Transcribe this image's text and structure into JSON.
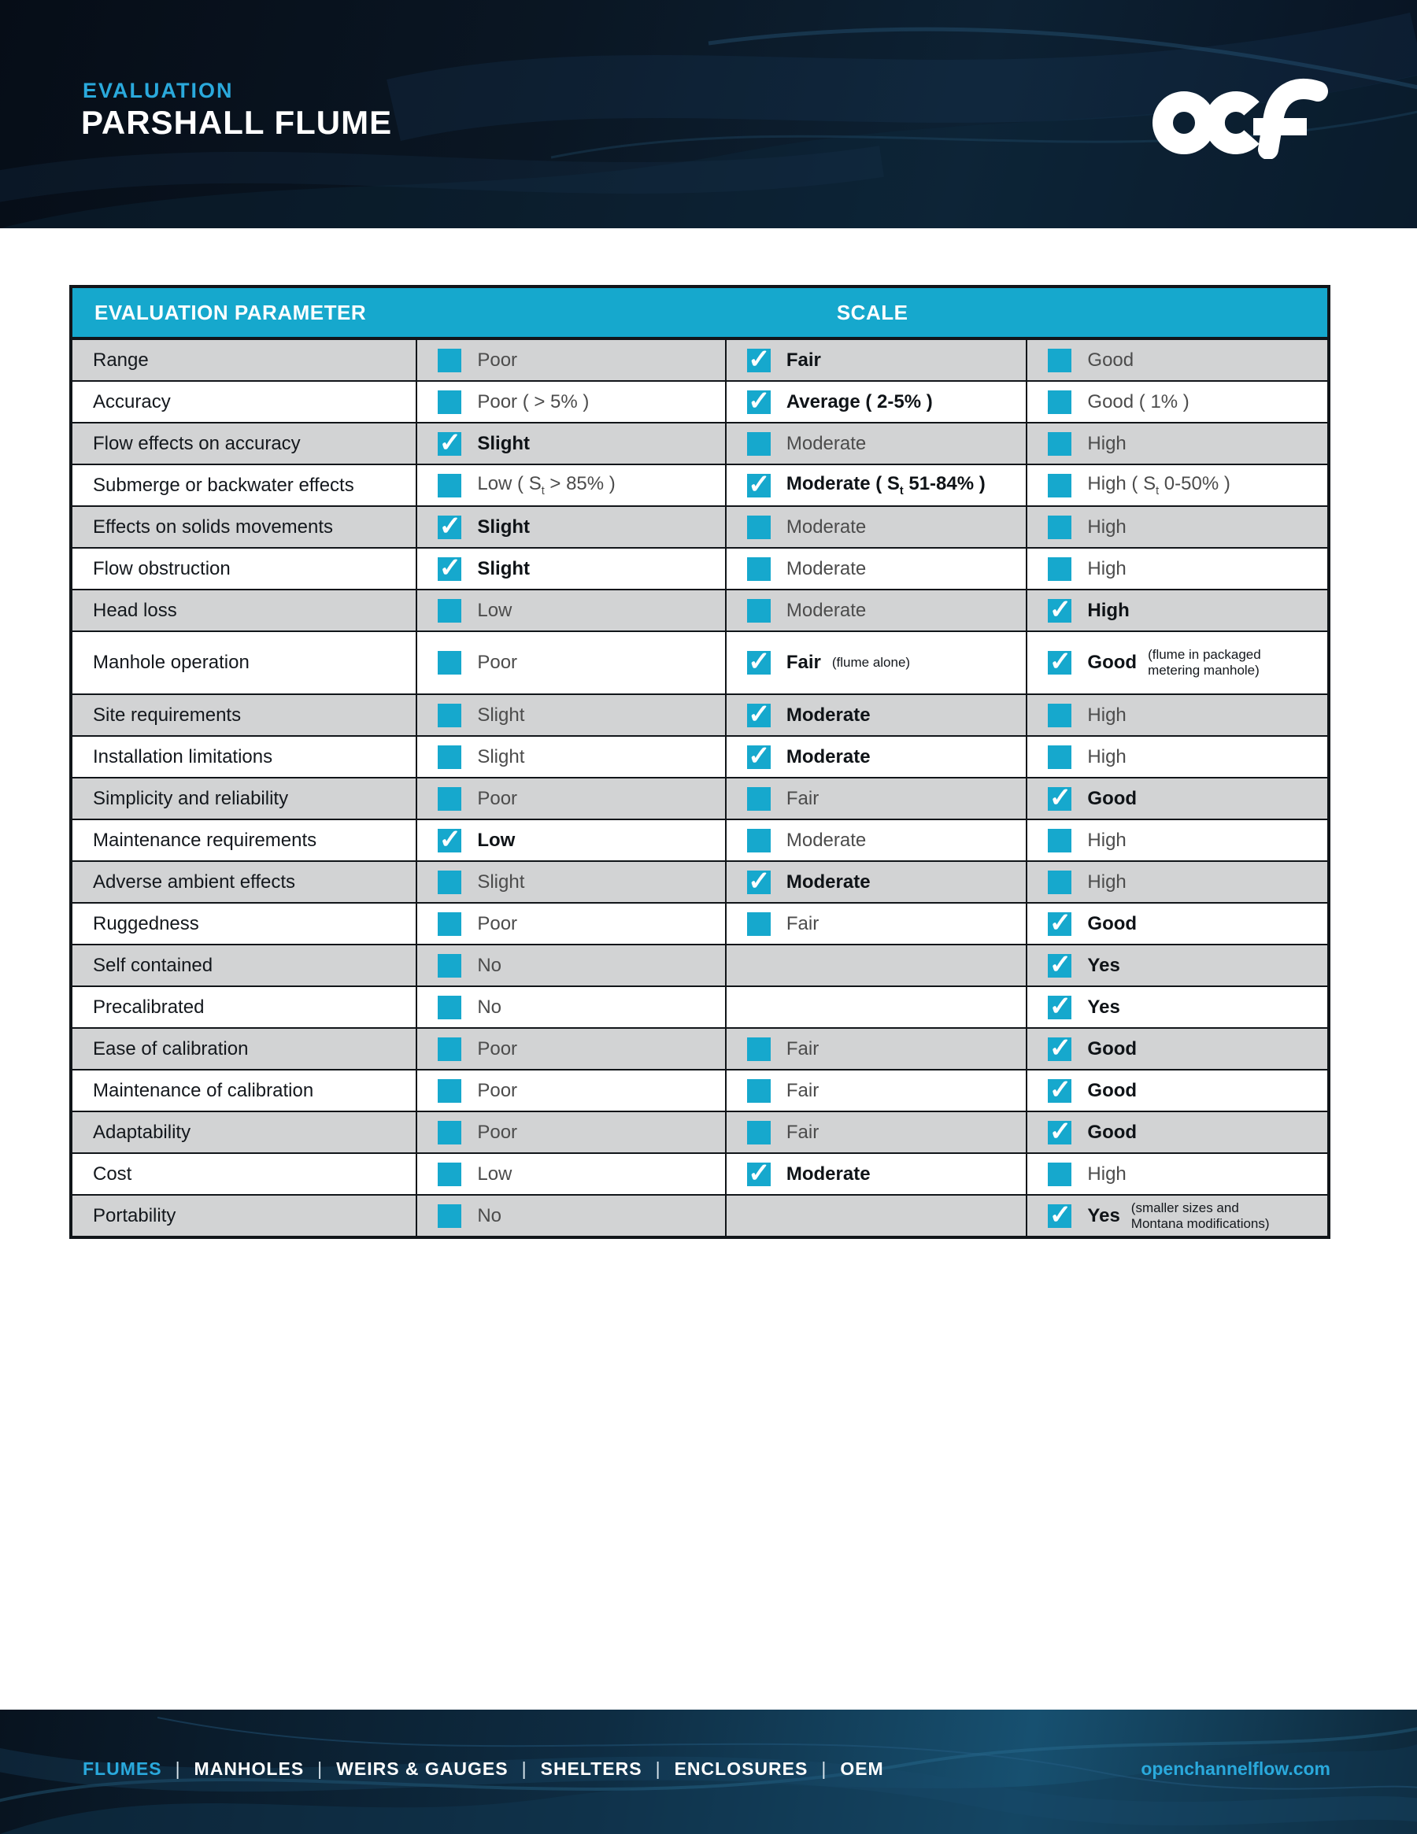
{
  "header": {
    "eyebrow": "EVALUATION",
    "title": "PARSHALL FLUME",
    "logo": "OCF"
  },
  "table": {
    "col_param": "EVALUATION PARAMETER",
    "col_scale": "SCALE",
    "rows": [
      {
        "param": "Range",
        "cells": [
          {
            "label": "Poor",
            "checked": false
          },
          {
            "label": "Fair",
            "checked": true
          },
          {
            "label": "Good",
            "checked": false
          }
        ]
      },
      {
        "param": "Accuracy",
        "cells": [
          {
            "label": "Poor ( > 5% )",
            "checked": false
          },
          {
            "label": "Average ( 2-5% )",
            "checked": true
          },
          {
            "label": "Good ( 1% )",
            "checked": false
          }
        ]
      },
      {
        "param": "Flow effects on accuracy",
        "cells": [
          {
            "label": "Slight",
            "checked": true
          },
          {
            "label": "Moderate",
            "checked": false
          },
          {
            "label": "High",
            "checked": false
          }
        ]
      },
      {
        "param": "Submerge or backwater effects",
        "cells": [
          {
            "label": "Low ( St > 85% )",
            "label_html": "Low ( S<sub>t</sub> &gt; 85% )",
            "checked": false
          },
          {
            "label": "Moderate ( St 51-84% )",
            "label_html": "Moderate ( S<sub>t</sub> 51-84%  )",
            "checked": true
          },
          {
            "label": "High ( St 0-50% )",
            "label_html": "High ( S<sub>t</sub> 0-50%  )",
            "checked": false
          }
        ]
      },
      {
        "param": "Effects on solids movements",
        "cells": [
          {
            "label": "Slight",
            "checked": true
          },
          {
            "label": "Moderate",
            "checked": false
          },
          {
            "label": "High",
            "checked": false
          }
        ]
      },
      {
        "param": "Flow obstruction",
        "cells": [
          {
            "label": "Slight",
            "checked": true
          },
          {
            "label": "Moderate",
            "checked": false
          },
          {
            "label": "High",
            "checked": false
          }
        ]
      },
      {
        "param": "Head loss",
        "cells": [
          {
            "label": "Low",
            "checked": false
          },
          {
            "label": "Moderate",
            "checked": false
          },
          {
            "label": "High",
            "checked": true
          }
        ]
      },
      {
        "param": "Manhole operation",
        "tall": true,
        "cells": [
          {
            "label": "Poor",
            "checked": false
          },
          {
            "label": "Fair",
            "checked": true,
            "note": "(flume alone)"
          },
          {
            "label": "Good",
            "checked": true,
            "note": "(flume in packaged\nmetering manhole)"
          }
        ]
      },
      {
        "param": "Site requirements",
        "cells": [
          {
            "label": "Slight",
            "checked": false
          },
          {
            "label": "Moderate",
            "checked": true
          },
          {
            "label": "High",
            "checked": false
          }
        ]
      },
      {
        "param": "Installation limitations",
        "cells": [
          {
            "label": "Slight",
            "checked": false
          },
          {
            "label": "Moderate",
            "checked": true
          },
          {
            "label": "High",
            "checked": false
          }
        ]
      },
      {
        "param": "Simplicity and reliability",
        "cells": [
          {
            "label": "Poor",
            "checked": false
          },
          {
            "label": "Fair",
            "checked": false
          },
          {
            "label": "Good",
            "checked": true
          }
        ]
      },
      {
        "param": "Maintenance requirements",
        "cells": [
          {
            "label": "Low",
            "checked": true
          },
          {
            "label": "Moderate",
            "checked": false
          },
          {
            "label": "High",
            "checked": false
          }
        ]
      },
      {
        "param": "Adverse ambient effects",
        "cells": [
          {
            "label": "Slight",
            "checked": false
          },
          {
            "label": "Moderate",
            "checked": true
          },
          {
            "label": "High",
            "checked": false
          }
        ]
      },
      {
        "param": "Ruggedness",
        "cells": [
          {
            "label": "Poor",
            "checked": false
          },
          {
            "label": "Fair",
            "checked": false
          },
          {
            "label": "Good",
            "checked": true
          }
        ]
      },
      {
        "param": "Self contained",
        "cells": [
          {
            "label": "No",
            "checked": false
          },
          null,
          {
            "label": "Yes",
            "checked": true
          }
        ]
      },
      {
        "param": "Precalibrated",
        "cells": [
          {
            "label": "No",
            "checked": false
          },
          null,
          {
            "label": "Yes",
            "checked": true
          }
        ]
      },
      {
        "param": "Ease of calibration",
        "cells": [
          {
            "label": "Poor",
            "checked": false
          },
          {
            "label": "Fair",
            "checked": false
          },
          {
            "label": "Good",
            "checked": true
          }
        ]
      },
      {
        "param": "Maintenance of calibration",
        "cells": [
          {
            "label": "Poor",
            "checked": false
          },
          {
            "label": "Fair",
            "checked": false
          },
          {
            "label": "Good",
            "checked": true
          }
        ]
      },
      {
        "param": "Adaptability",
        "cells": [
          {
            "label": "Poor",
            "checked": false
          },
          {
            "label": "Fair",
            "checked": false
          },
          {
            "label": "Good",
            "checked": true
          }
        ]
      },
      {
        "param": "Cost",
        "cells": [
          {
            "label": "Low",
            "checked": false
          },
          {
            "label": "Moderate",
            "checked": true
          },
          {
            "label": "High",
            "checked": false
          }
        ]
      },
      {
        "param": "Portability",
        "cells": [
          {
            "label": "No",
            "checked": false
          },
          null,
          {
            "label": "Yes",
            "checked": true,
            "note": "(smaller sizes and\nMontana modifications)"
          }
        ]
      }
    ]
  },
  "footer": {
    "nav": [
      "FLUMES",
      "MANHOLES",
      "WEIRS & GAUGES",
      "SHELTERS",
      "ENCLOSURES",
      "OEM"
    ],
    "active_nav": "FLUMES",
    "separator": "|",
    "website": "openchannelflow.com"
  },
  "icons": {
    "tick": "✓"
  },
  "colors": {
    "accent": "#16a8cd",
    "accent_text": "#2aa9dc",
    "row_gray": "#d2d3d4",
    "border": "#111519",
    "hero_dark": "#081322",
    "white": "#ffffff"
  }
}
